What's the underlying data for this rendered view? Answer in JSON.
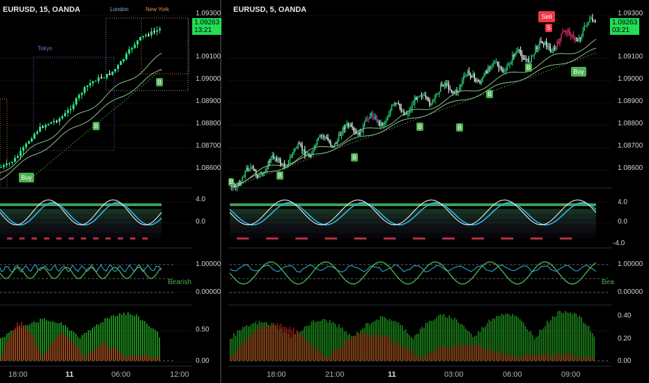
{
  "left_panel": {
    "symbol_title": "EURUSD, 15, OANDA",
    "sessions": {
      "tokyo": "Tokyo",
      "london": "London",
      "new_york": "New York"
    },
    "price_axis": [
      "1.09300",
      "1.09100",
      "1.09000",
      "1.08900",
      "1.08800",
      "1.08700",
      "1.08600"
    ],
    "last_price": "1.09263",
    "countdown": "13:21",
    "signals": {
      "buy": "Buy",
      "b": "B"
    },
    "osc1_axis": [
      "4.0",
      "0.0"
    ],
    "osc2_axis": [
      "1.00000",
      "0.00000"
    ],
    "osc2_status": "Bearish",
    "osc3_axis": [
      "0.50",
      "0.00"
    ],
    "time_axis": [
      "18:00",
      "11",
      "06:00",
      "12:00"
    ]
  },
  "right_panel": {
    "symbol_title": "EURUSD, 5, OANDA",
    "price_axis": [
      "1.09300",
      "1.09100",
      "1.09000",
      "1.08900",
      "1.08800",
      "1.08700",
      "1.08600"
    ],
    "last_price": "1.09263",
    "countdown": "03:21",
    "signals": {
      "sell": "Sell",
      "s": "S",
      "buy": "Buy",
      "b": "B"
    },
    "osc1_axis": [
      "4.0",
      "0.0",
      "-4.0"
    ],
    "osc2_axis": [
      "1.00000",
      "0.00000"
    ],
    "osc2_status": "Bea",
    "osc3_axis": [
      "0.40",
      "0.20",
      "0.00"
    ],
    "time_axis": [
      "18:00",
      "21:00",
      "11",
      "03:00",
      "06:00",
      "09:00"
    ]
  },
  "colors": {
    "background": "#000000",
    "bull_candle": "#26e07f",
    "bear_candle": "#ffffff",
    "magenta_candle": "#b040c0",
    "red_candle": "#e0306a",
    "price_label": "#22dd55",
    "sell_signal": "#f23645",
    "buy_signal": "#4caf50",
    "ma_line": "#8bc48a",
    "osc_white": "#ffffff",
    "osc_cyan": "#30b8e8",
    "osc_green": "#4caf50",
    "tokyo_box": "#6a5acd",
    "london_box": "#8aa0c0",
    "ny_box": "#d08040"
  }
}
